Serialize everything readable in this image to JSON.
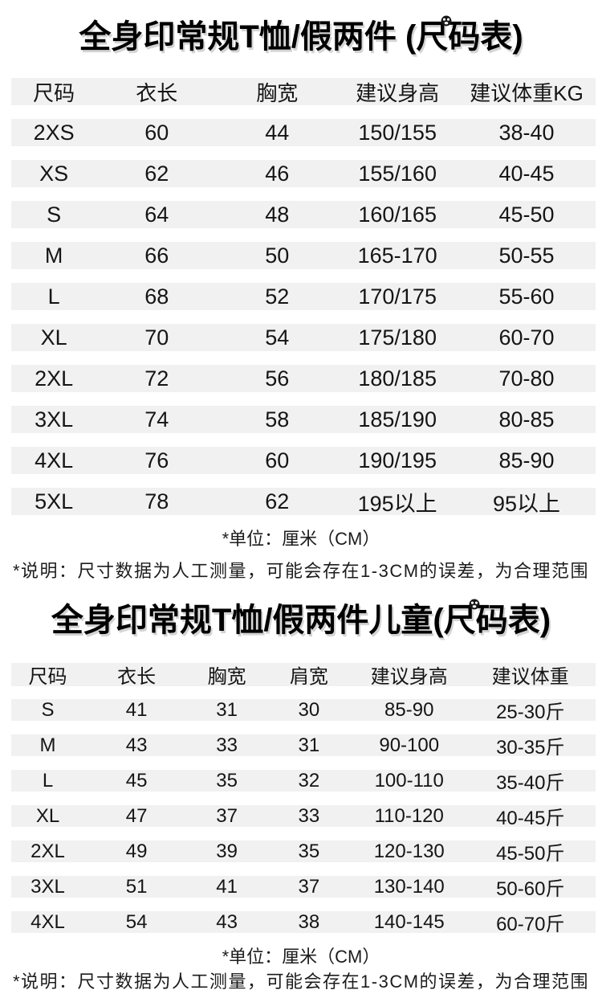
{
  "colors": {
    "stripe": "#f1f1f1",
    "text": "#151515",
    "title": "#000000"
  },
  "adult": {
    "title_full": "全身印常规T恤/假两件 (尺码表)",
    "title_prefix": "全身印常规T恤/假两件 (",
    "title_badge_char": "尺",
    "title_suffix": "码表)",
    "badge_icon": "panda-badge-icon",
    "unit_note": "*单位：厘米（CM）",
    "disclaimer": "*说明：尺寸数据为人工测量，可能会存在1-3CM的误差，为合理范围"
  },
  "kids": {
    "title_full": "全身印常规T恤/假两件儿童(尺码表)",
    "title_prefix": "全身印常规T恤/假两件儿童(",
    "title_badge_char": "尺",
    "title_suffix": "码表)",
    "badge_icon": "panda-badge-icon",
    "unit_note": "*单位：厘米（CM）",
    "disclaimer": "*说明：尺寸数据为人工测量，可能会存在1-3CM的误差，为合理范围"
  },
  "chart_data": [
    {
      "type": "table",
      "title": "全身印常规T恤/假两件 (尺码表)",
      "columns": [
        "尺码",
        "衣长",
        "胸宽",
        "建议身高",
        "建议体重KG"
      ],
      "rows": [
        [
          "2XS",
          "60",
          "44",
          "150/155",
          "38-40"
        ],
        [
          "XS",
          "62",
          "46",
          "155/160",
          "40-45"
        ],
        [
          "S",
          "64",
          "48",
          "160/165",
          "45-50"
        ],
        [
          "M",
          "66",
          "50",
          "165-170",
          "50-55"
        ],
        [
          "L",
          "68",
          "52",
          "170/175",
          "55-60"
        ],
        [
          "XL",
          "70",
          "54",
          "175/180",
          "60-70"
        ],
        [
          "2XL",
          "72",
          "56",
          "180/185",
          "70-80"
        ],
        [
          "3XL",
          "74",
          "58",
          "185/190",
          "80-85"
        ],
        [
          "4XL",
          "76",
          "60",
          "190/195",
          "85-90"
        ],
        [
          "5XL",
          "78",
          "62",
          "195以上",
          "95以上"
        ]
      ],
      "unit": "厘米（CM）",
      "layout": "striped-rows"
    },
    {
      "type": "table",
      "title": "全身印常规T恤/假两件儿童(尺码表)",
      "columns": [
        "尺码",
        "衣长",
        "胸宽",
        "肩宽",
        "建议身高",
        "建议体重"
      ],
      "rows": [
        [
          "S",
          "41",
          "31",
          "30",
          "85-90",
          "25-30斤"
        ],
        [
          "M",
          "43",
          "33",
          "31",
          "90-100",
          "30-35斤"
        ],
        [
          "L",
          "45",
          "35",
          "32",
          "100-110",
          "35-40斤"
        ],
        [
          "XL",
          "47",
          "37",
          "33",
          "110-120",
          "40-45斤"
        ],
        [
          "2XL",
          "49",
          "39",
          "35",
          "120-130",
          "45-50斤"
        ],
        [
          "3XL",
          "51",
          "41",
          "37",
          "130-140",
          "50-60斤"
        ],
        [
          "4XL",
          "54",
          "43",
          "38",
          "140-145",
          "60-70斤"
        ]
      ],
      "unit": "厘米（CM）",
      "layout": "striped-rows"
    }
  ]
}
